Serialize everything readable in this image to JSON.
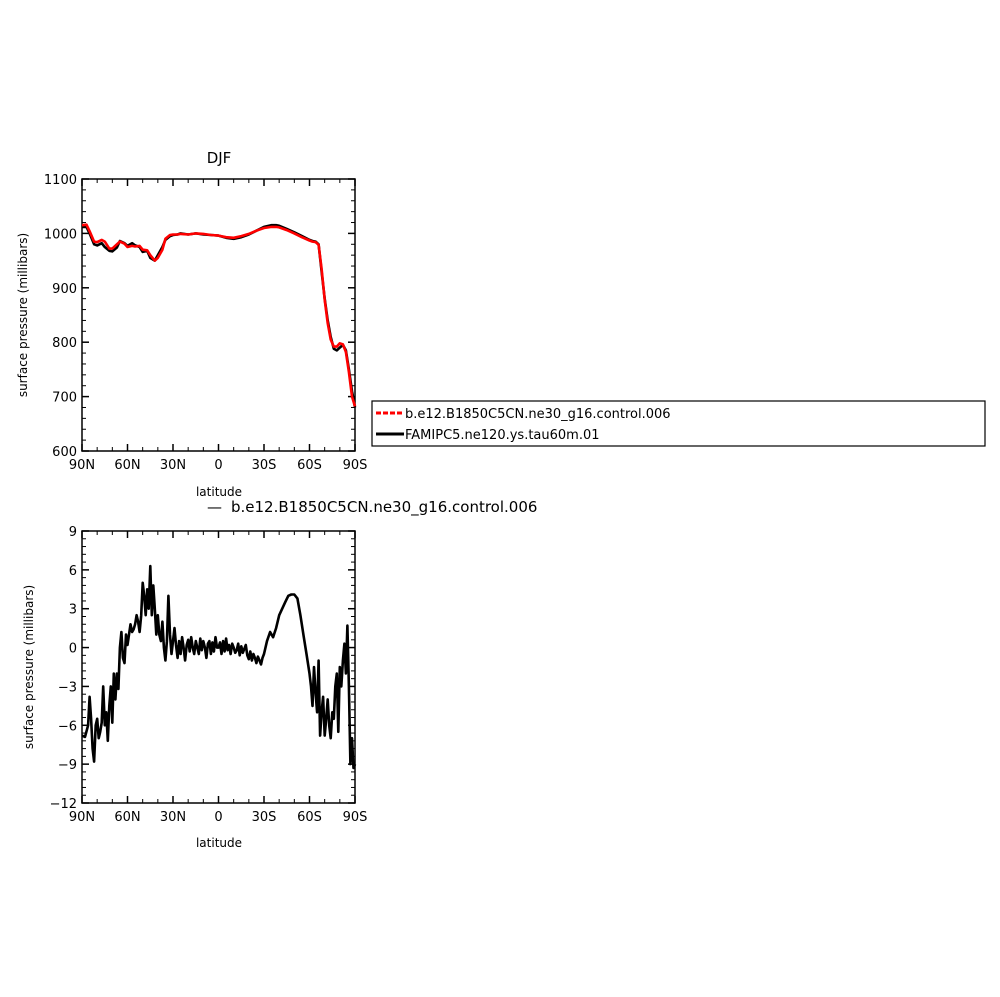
{
  "chart_data": [
    {
      "type": "line",
      "title": "DJF",
      "xlabel": "latitude",
      "ylabel": "surface pressure (millibars)",
      "xlim": [
        90,
        -90
      ],
      "ylim": [
        600,
        1100
      ],
      "x_tick_values": [
        90,
        60,
        30,
        0,
        -30,
        -60,
        -90
      ],
      "x_tick_labels": [
        "90N",
        "60N",
        "30N",
        "0",
        "30S",
        "60S",
        "90S"
      ],
      "y_tick_values": [
        600,
        700,
        800,
        900,
        1000,
        1100
      ],
      "y_tick_labels": [
        "600",
        "700",
        "800",
        "900",
        "1000",
        "1100"
      ],
      "legend": {
        "placement": "right",
        "entries": [
          {
            "label": "b.e12.B1850C5CN.ne30_g16.control.006",
            "color": "#ff0000",
            "dash": true
          },
          {
            "label": "FAMIPC5.ne120.ys.tau60m.01",
            "color": "#000000",
            "dash": false
          }
        ]
      },
      "series": [
        {
          "name": "FAMIPC5.ne120.ys.tau60m.01",
          "color": "#000000",
          "x": [
            90,
            87,
            85,
            82,
            80,
            77,
            75,
            72,
            70,
            67,
            65,
            62,
            60,
            57,
            55,
            52,
            50,
            47,
            45,
            42,
            40,
            37,
            35,
            32,
            30,
            27,
            25,
            20,
            15,
            10,
            5,
            0,
            -5,
            -10,
            -15,
            -20,
            -25,
            -30,
            -35,
            -38,
            -40,
            -45,
            -50,
            -55,
            -60,
            -62,
            -64,
            -66,
            -68,
            -70,
            -72,
            -74,
            -76,
            -78,
            -80,
            -82,
            -84,
            -86,
            -88,
            -90
          ],
          "y": [
            1012,
            1012,
            1000,
            980,
            978,
            982,
            975,
            968,
            967,
            974,
            986,
            982,
            977,
            982,
            978,
            975,
            966,
            968,
            955,
            950,
            960,
            975,
            988,
            995,
            997,
            998,
            1000,
            998,
            1000,
            998,
            997,
            996,
            992,
            990,
            993,
            998,
            1005,
            1012,
            1015,
            1015,
            1014,
            1008,
            1002,
            995,
            988,
            986,
            985,
            980,
            930,
            880,
            840,
            810,
            788,
            785,
            790,
            795,
            785,
            750,
            710,
            680
          ]
        },
        {
          "name": "b.e12.B1850C5CN.ne30_g16.control.006",
          "color": "#ff0000",
          "x": [
            90,
            87,
            85,
            82,
            80,
            77,
            75,
            72,
            70,
            67,
            65,
            62,
            60,
            57,
            55,
            52,
            50,
            47,
            45,
            42,
            40,
            37,
            35,
            32,
            30,
            27,
            25,
            20,
            15,
            10,
            5,
            0,
            -5,
            -10,
            -15,
            -20,
            -25,
            -30,
            -35,
            -38,
            -40,
            -45,
            -50,
            -55,
            -60,
            -62,
            -64,
            -66,
            -68,
            -70,
            -72,
            -74,
            -76,
            -78,
            -80,
            -82,
            -84,
            -86,
            -88,
            -90
          ],
          "y": [
            1015,
            1016,
            1004,
            985,
            984,
            988,
            985,
            972,
            972,
            980,
            985,
            981,
            975,
            977,
            976,
            977,
            970,
            969,
            960,
            950,
            955,
            970,
            990,
            997,
            998,
            998,
            999,
            998,
            1000,
            999,
            997,
            996,
            993,
            992,
            995,
            999,
            1005,
            1010,
            1012,
            1012,
            1011,
            1006,
            1000,
            993,
            987,
            985,
            984,
            979,
            935,
            878,
            835,
            805,
            792,
            792,
            798,
            796,
            782,
            745,
            700,
            682
          ]
        }
      ]
    },
    {
      "type": "line",
      "title": "b.e12.B1850C5CN.ne30_g16.control.006",
      "title_prefix": "—",
      "xlabel": "latitude",
      "ylabel": "surface pressure (millibars)",
      "xlim": [
        90,
        -90
      ],
      "ylim": [
        -12,
        9
      ],
      "x_tick_values": [
        90,
        60,
        30,
        0,
        -30,
        -60,
        -90
      ],
      "x_tick_labels": [
        "90N",
        "60N",
        "30N",
        "0",
        "30S",
        "60S",
        "90S"
      ],
      "y_tick_values": [
        -12,
        -9,
        -6,
        -3,
        0,
        3,
        6,
        9
      ],
      "y_tick_labels": [
        "−12",
        "−9",
        "−6",
        "−3",
        "0",
        "3",
        "6",
        "9"
      ],
      "series": [
        {
          "color": "#000000",
          "x": [
            90,
            88,
            86,
            85,
            84,
            83,
            82,
            81,
            80,
            79,
            78,
            77,
            76,
            75,
            74,
            73,
            72,
            71,
            70,
            69,
            68,
            67,
            66,
            65,
            64,
            63,
            62,
            61,
            60,
            59,
            58,
            57,
            56,
            55,
            54,
            53,
            52,
            51,
            50,
            49,
            48,
            47,
            46,
            45,
            44,
            43,
            42,
            41,
            40,
            39,
            38,
            37,
            36,
            35,
            34,
            33,
            32,
            31,
            30,
            29,
            28,
            27,
            26,
            25,
            24,
            23,
            22,
            21,
            20,
            19,
            18,
            17,
            16,
            15,
            14,
            13,
            12,
            11,
            10,
            9,
            8,
            7,
            6,
            5,
            4,
            3,
            2,
            1,
            0,
            -1,
            -2,
            -3,
            -4,
            -5,
            -6,
            -7,
            -8,
            -9,
            -10,
            -11,
            -12,
            -13,
            -14,
            -15,
            -16,
            -17,
            -18,
            -19,
            -20,
            -21,
            -22,
            -23,
            -24,
            -25,
            -26,
            -27,
            -28,
            -29,
            -30,
            -32,
            -34,
            -36,
            -38,
            -40,
            -42,
            -44,
            -46,
            -48,
            -50,
            -52,
            -54,
            -56,
            -58,
            -60,
            -61,
            -62,
            -63,
            -64,
            -65,
            -66,
            -67,
            -68,
            -69,
            -70,
            -71,
            -72,
            -73,
            -74,
            -75,
            -76,
            -77,
            -78,
            -79,
            -80,
            -81,
            -82,
            -83,
            -84,
            -85,
            -86,
            -87,
            -88,
            -89,
            -90
          ],
          "y": [
            -6.8,
            -6.9,
            -6.0,
            -3.8,
            -5.5,
            -7.8,
            -8.8,
            -6.0,
            -5.5,
            -7.0,
            -6.5,
            -5.8,
            -3.0,
            -6.0,
            -5.0,
            -7.2,
            -4.5,
            -3.0,
            -5.8,
            -2.0,
            -4.0,
            -2.0,
            -3.2,
            0.0,
            1.2,
            -0.8,
            -1.2,
            1.0,
            0.2,
            1.0,
            1.8,
            1.2,
            1.4,
            1.8,
            2.5,
            2.0,
            1.2,
            2.5,
            5.0,
            4.0,
            2.5,
            4.5,
            3.0,
            6.3,
            2.5,
            4.8,
            3.0,
            1.0,
            2.5,
            1.0,
            0.5,
            2.0,
            0.0,
            -1.0,
            0.5,
            4.0,
            1.0,
            -0.5,
            0.5,
            1.5,
            0.2,
            -0.8,
            0.5,
            -0.5,
            0.8,
            0.0,
            -1.0,
            0.2,
            0.6,
            -0.3,
            0.8,
            0.0,
            -0.5,
            0.5,
            0.0,
            -0.5,
            0.7,
            -0.2,
            0.5,
            0.0,
            -0.8,
            0.3,
            0.5,
            -0.5,
            0.4,
            -0.3,
            0.8,
            0.0,
            0.0,
            0.4,
            -0.5,
            0.5,
            -0.3,
            0.7,
            -0.2,
            0.2,
            -0.5,
            0.3,
            0.0,
            -0.4,
            -0.2,
            0.3,
            -0.6,
            0.1,
            -0.4,
            -0.1,
            0.2,
            -0.6,
            -0.9,
            -0.3,
            -1.0,
            -0.5,
            -0.8,
            -1.2,
            -0.7,
            -1.0,
            -1.3,
            -0.8,
            -0.5,
            0.5,
            1.2,
            0.8,
            1.5,
            2.5,
            3.0,
            3.5,
            4.0,
            4.1,
            4.1,
            3.8,
            2.5,
            1.0,
            -0.5,
            -2.0,
            -3.0,
            -4.5,
            -1.5,
            -3.5,
            -5.0,
            -1.0,
            -6.8,
            -5.0,
            -3.8,
            -6.8,
            -5.5,
            -4.0,
            -6.0,
            -7.0,
            -5.0,
            -5.5,
            -3.0,
            -2.0,
            -6.5,
            -1.5,
            -3.0,
            -1.0,
            0.3,
            -2.0,
            1.7,
            -3.0,
            -9.0,
            -7.0,
            -9.3,
            -9.0
          ]
        }
      ]
    }
  ]
}
